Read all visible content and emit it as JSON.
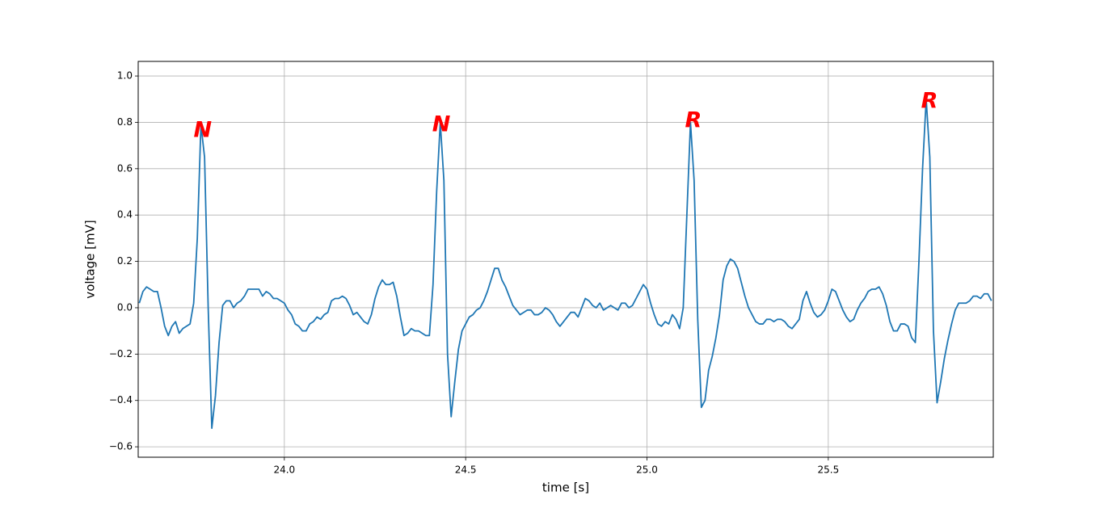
{
  "chart_data": {
    "type": "line",
    "xlabel": "time [s]",
    "ylabel": "voltage [mV]",
    "color": "#1f77b4",
    "grid": true,
    "xlim": [
      23.597,
      25.955
    ],
    "ylim": [
      -0.645,
      1.063
    ],
    "xticks": [
      {
        "value": 24,
        "label": "24.0"
      },
      {
        "value": 24.5,
        "label": "24.5"
      },
      {
        "value": 25,
        "label": "25.0"
      },
      {
        "value": 25.5,
        "label": "25.5"
      }
    ],
    "yticks": [
      {
        "value": -0.6,
        "label": "−0.6"
      },
      {
        "value": -0.4,
        "label": "−0.4"
      },
      {
        "value": -0.2,
        "label": "−0.2"
      },
      {
        "value": 0,
        "label": "0.0"
      },
      0.2,
      0.4,
      0.6,
      0.8,
      {
        "value": 1,
        "label": "1.0"
      }
    ],
    "annotations": [
      {
        "text": "N",
        "x": 23.775,
        "y": 0.763,
        "color": "#ff0000"
      },
      {
        "text": "N",
        "x": 24.433,
        "y": 0.787,
        "color": "#ff0000"
      },
      {
        "text": "R",
        "x": 25.128,
        "y": 0.805,
        "color": "#ff0000"
      },
      {
        "text": "R",
        "x": 25.779,
        "y": 0.888,
        "color": "#ff0000"
      }
    ],
    "x": [
      23.6,
      23.61,
      23.62,
      23.63,
      23.64,
      23.65,
      23.66,
      23.67,
      23.68,
      23.69,
      23.7,
      23.71,
      23.72,
      23.73,
      23.74,
      23.75,
      23.76,
      23.77,
      23.78,
      23.79,
      23.8,
      23.81,
      23.82,
      23.83,
      23.84,
      23.85,
      23.86,
      23.87,
      23.88,
      23.89,
      23.9,
      23.91,
      23.92,
      23.93,
      23.94,
      23.95,
      23.96,
      23.97,
      23.98,
      23.99,
      24.0,
      24.01,
      24.02,
      24.03,
      24.04,
      24.05,
      24.06,
      24.07,
      24.08,
      24.09,
      24.1,
      24.11,
      24.12,
      24.13,
      24.14,
      24.15,
      24.16,
      24.17,
      24.18,
      24.19,
      24.2,
      24.21,
      24.22,
      24.23,
      24.24,
      24.25,
      24.26,
      24.27,
      24.28,
      24.29,
      24.3,
      24.31,
      24.32,
      24.33,
      24.34,
      24.35,
      24.36,
      24.37,
      24.38,
      24.39,
      24.4,
      24.41,
      24.42,
      24.43,
      24.44,
      24.45,
      24.46,
      24.47,
      24.48,
      24.49,
      24.5,
      24.51,
      24.52,
      24.53,
      24.54,
      24.55,
      24.56,
      24.57,
      24.58,
      24.59,
      24.6,
      24.61,
      24.62,
      24.63,
      24.64,
      24.65,
      24.66,
      24.67,
      24.68,
      24.69,
      24.7,
      24.71,
      24.72,
      24.73,
      24.74,
      24.75,
      24.76,
      24.77,
      24.78,
      24.79,
      24.8,
      24.81,
      24.82,
      24.83,
      24.84,
      24.85,
      24.86,
      24.87,
      24.88,
      24.89,
      24.9,
      24.91,
      24.92,
      24.93,
      24.94,
      24.95,
      24.96,
      24.97,
      24.98,
      24.99,
      25.0,
      25.01,
      25.02,
      25.03,
      25.04,
      25.05,
      25.06,
      25.07,
      25.08,
      25.09,
      25.1,
      25.11,
      25.12,
      25.13,
      25.14,
      25.15,
      25.16,
      25.17,
      25.18,
      25.19,
      25.2,
      25.21,
      25.22,
      25.23,
      25.24,
      25.25,
      25.26,
      25.27,
      25.28,
      25.29,
      25.3,
      25.31,
      25.32,
      25.33,
      25.34,
      25.35,
      25.36,
      25.37,
      25.38,
      25.39,
      25.4,
      25.41,
      25.42,
      25.43,
      25.44,
      25.45,
      25.46,
      25.47,
      25.48,
      25.49,
      25.5,
      25.51,
      25.52,
      25.53,
      25.54,
      25.55,
      25.56,
      25.57,
      25.58,
      25.59,
      25.6,
      25.61,
      25.62,
      25.63,
      25.64,
      25.65,
      25.66,
      25.67,
      25.68,
      25.69,
      25.7,
      25.71,
      25.72,
      25.73,
      25.74,
      25.75,
      25.76,
      25.77,
      25.78,
      25.79,
      25.8,
      25.81,
      25.82,
      25.83,
      25.84,
      25.85,
      25.86,
      25.87,
      25.88,
      25.89,
      25.9,
      25.91,
      25.92,
      25.93,
      25.94,
      25.95
    ],
    "values": [
      0.02,
      0.07,
      0.09,
      0.08,
      0.07,
      0.07,
      0.0,
      -0.08,
      -0.12,
      -0.08,
      -0.06,
      -0.11,
      -0.09,
      -0.08,
      -0.07,
      0.02,
      0.3,
      0.79,
      0.65,
      0.0,
      -0.52,
      -0.38,
      -0.15,
      0.01,
      0.03,
      0.03,
      0.0,
      0.02,
      0.03,
      0.05,
      0.08,
      0.08,
      0.08,
      0.08,
      0.05,
      0.07,
      0.06,
      0.04,
      0.04,
      0.03,
      0.02,
      -0.01,
      -0.03,
      -0.07,
      -0.08,
      -0.1,
      -0.1,
      -0.07,
      -0.06,
      -0.04,
      -0.05,
      -0.03,
      -0.02,
      0.03,
      0.04,
      0.04,
      0.05,
      0.04,
      0.01,
      -0.03,
      -0.02,
      -0.04,
      -0.06,
      -0.07,
      -0.03,
      0.04,
      0.09,
      0.12,
      0.1,
      0.1,
      0.11,
      0.05,
      -0.04,
      -0.12,
      -0.11,
      -0.09,
      -0.1,
      -0.1,
      -0.11,
      -0.12,
      -0.12,
      0.1,
      0.5,
      0.8,
      0.55,
      -0.2,
      -0.47,
      -0.32,
      -0.18,
      -0.1,
      -0.07,
      -0.04,
      -0.03,
      -0.01,
      0.0,
      0.03,
      0.07,
      0.12,
      0.17,
      0.17,
      0.12,
      0.09,
      0.05,
      0.01,
      -0.01,
      -0.03,
      -0.02,
      -0.01,
      -0.01,
      -0.03,
      -0.03,
      -0.02,
      0.0,
      -0.01,
      -0.03,
      -0.06,
      -0.08,
      -0.06,
      -0.04,
      -0.02,
      -0.02,
      -0.04,
      0.0,
      0.04,
      0.03,
      0.01,
      0.0,
      0.02,
      -0.01,
      0.0,
      0.01,
      0.0,
      -0.01,
      0.02,
      0.02,
      0.0,
      0.01,
      0.04,
      0.07,
      0.1,
      0.08,
      0.02,
      -0.03,
      -0.07,
      -0.08,
      -0.06,
      -0.07,
      -0.03,
      -0.05,
      -0.09,
      0.0,
      0.4,
      0.8,
      0.55,
      -0.05,
      -0.43,
      -0.4,
      -0.27,
      -0.21,
      -0.13,
      -0.03,
      0.12,
      0.18,
      0.21,
      0.2,
      0.17,
      0.11,
      0.05,
      0.0,
      -0.03,
      -0.06,
      -0.07,
      -0.07,
      -0.05,
      -0.05,
      -0.06,
      -0.05,
      -0.05,
      -0.06,
      -0.08,
      -0.09,
      -0.07,
      -0.05,
      0.03,
      0.07,
      0.02,
      -0.02,
      -0.04,
      -0.03,
      -0.01,
      0.03,
      0.08,
      0.07,
      0.03,
      -0.01,
      -0.04,
      -0.06,
      -0.05,
      -0.01,
      0.02,
      0.04,
      0.07,
      0.08,
      0.08,
      0.09,
      0.06,
      0.01,
      -0.06,
      -0.1,
      -0.1,
      -0.07,
      -0.07,
      -0.08,
      -0.13,
      -0.15,
      0.2,
      0.6,
      0.9,
      0.65,
      -0.1,
      -0.41,
      -0.32,
      -0.22,
      -0.14,
      -0.07,
      -0.01,
      0.02,
      0.02,
      0.02,
      0.03,
      0.05,
      0.05,
      0.04,
      0.06,
      0.06,
      0.03
    ]
  }
}
